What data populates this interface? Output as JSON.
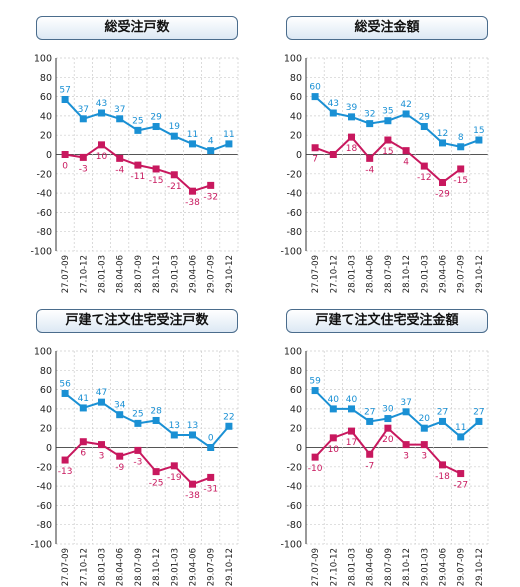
{
  "colors": {
    "series_a": "#1a90d4",
    "series_b": "#c8185e",
    "grid": "#cccccc",
    "zero": "#555555",
    "axis": "#333333"
  },
  "chart_data": [
    {
      "type": "line",
      "title": "総受注戸数",
      "categories": [
        "H27.07-09",
        "H27.10-12",
        "H28.01-03",
        "H28.04-06",
        "H28.07-09",
        "H28.10-12",
        "H29.01-03",
        "H29.04-06",
        "H29.07-09",
        "H29.10-12"
      ],
      "ylim": [
        -100,
        100
      ],
      "yticks": [
        "100",
        "80",
        "60",
        "40",
        "20",
        "0",
        "-20",
        "-40",
        "-60",
        "-80",
        "-100"
      ],
      "grid": true,
      "series": [
        {
          "values": [
            57,
            37,
            43,
            37,
            25,
            29,
            19,
            11,
            4,
            11
          ],
          "labels": [
            "57",
            "37",
            "43",
            "37",
            "25",
            "29",
            "19",
            "11",
            "4",
            "11"
          ]
        },
        {
          "values": [
            0,
            -3,
            10,
            -4,
            -11,
            -15,
            -21,
            -38,
            -32,
            null
          ],
          "labels": [
            "0",
            "-3",
            "10",
            "-4",
            "-11",
            "-15",
            "-21",
            "-38",
            "-32",
            ""
          ]
        }
      ]
    },
    {
      "type": "line",
      "title": "総受注金額",
      "categories": [
        "H27.07-09",
        "H27.10-12",
        "H28.01-03",
        "H28.04-06",
        "H28.07-09",
        "H28.10-12",
        "H29.01-03",
        "H29.04-06",
        "H29.07-09",
        "H29.10-12"
      ],
      "ylim": [
        -100,
        100
      ],
      "yticks": [
        "100",
        "80",
        "60",
        "40",
        "20",
        "0",
        "-20",
        "-40",
        "-60",
        "-80",
        "-100"
      ],
      "grid": true,
      "series": [
        {
          "values": [
            60,
            43,
            39,
            32,
            35,
            42,
            29,
            12,
            8,
            15
          ],
          "labels": [
            "60",
            "43",
            "39",
            "32",
            "35",
            "42",
            "29",
            "12",
            "8",
            "15"
          ]
        },
        {
          "values": [
            7,
            0,
            18,
            -4,
            15,
            4,
            -12,
            -29,
            -15,
            null
          ],
          "labels": [
            "7",
            "",
            "18",
            "-4",
            "15",
            "4",
            "-12",
            "-29",
            "-15",
            ""
          ]
        }
      ]
    },
    {
      "type": "line",
      "title": "戸建て注文住宅受注戸数",
      "categories": [
        "H27.07-09",
        "H27.10-12",
        "H28.01-03",
        "H28.04-06",
        "H28.07-09",
        "H28.10-12",
        "H29.01-03",
        "H29.04-06",
        "H29.07-09",
        "H29.10-12"
      ],
      "ylim": [
        -100,
        100
      ],
      "yticks": [
        "100",
        "80",
        "60",
        "40",
        "20",
        "0",
        "-20",
        "-40",
        "-60",
        "-80",
        "-100"
      ],
      "grid": true,
      "series": [
        {
          "values": [
            56,
            41,
            47,
            34,
            25,
            28,
            13,
            13,
            0,
            22
          ],
          "labels": [
            "56",
            "41",
            "47",
            "34",
            "25",
            "28",
            "13",
            "13",
            "0",
            "22"
          ]
        },
        {
          "values": [
            -13,
            6,
            3,
            -9,
            -3,
            -25,
            -19,
            -38,
            -31,
            null
          ],
          "labels": [
            "-13",
            "6",
            "3",
            "-9",
            "-3",
            "-25",
            "-19",
            "-38",
            "-31",
            ""
          ]
        }
      ]
    },
    {
      "type": "line",
      "title": "戸建て注文住宅受注金額",
      "categories": [
        "H27.07-09",
        "H27.10-12",
        "H28.01-03",
        "H28.04-06",
        "H28.07-09",
        "H28.10-12",
        "H29.01-03",
        "H29.04-06",
        "H29.07-09",
        "H29.10-12"
      ],
      "ylim": [
        -100,
        100
      ],
      "yticks": [
        "100",
        "80",
        "60",
        "40",
        "20",
        "0",
        "-20",
        "-40",
        "-60",
        "-80",
        "-100"
      ],
      "grid": true,
      "series": [
        {
          "values": [
            59,
            40,
            40,
            27,
            30,
            37,
            20,
            27,
            11,
            27
          ],
          "labels": [
            "59",
            "40",
            "40",
            "27",
            "30",
            "37",
            "20",
            "27",
            "11",
            "27"
          ]
        },
        {
          "values": [
            -10,
            10,
            17,
            -7,
            20,
            3,
            3,
            -18,
            -27,
            null
          ],
          "labels": [
            "-10",
            "10",
            "17",
            "-7",
            "20",
            "3",
            "3",
            "-18",
            "-27",
            ""
          ]
        }
      ]
    }
  ]
}
